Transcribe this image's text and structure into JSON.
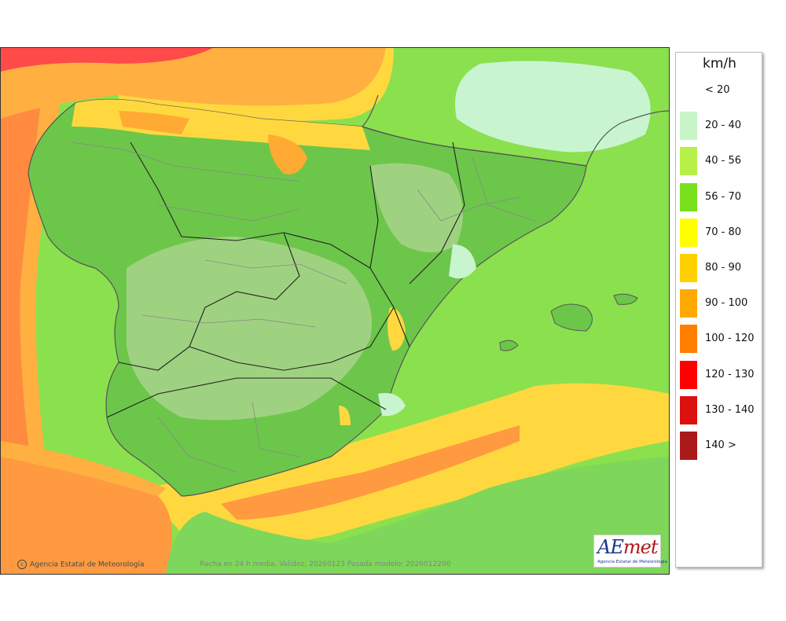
{
  "legend": {
    "unit": "km/h",
    "items": [
      {
        "label": "< 20",
        "color": "#ffffff"
      },
      {
        "label": "20 - 40",
        "color": "#c8f5c8"
      },
      {
        "label": "40 - 56",
        "color": "#b8f04a"
      },
      {
        "label": "56 - 70",
        "color": "#78e01c"
      },
      {
        "label": "70 - 80",
        "color": "#ffff00"
      },
      {
        "label": "80 - 90",
        "color": "#ffd000"
      },
      {
        "label": "90 - 100",
        "color": "#ffaa00"
      },
      {
        "label": "100 - 120",
        "color": "#ff8000"
      },
      {
        "label": "120 - 130",
        "color": "#ff0000"
      },
      {
        "label": "130 - 140",
        "color": "#dd1010"
      },
      {
        "label": "140 >",
        "color": "#aa1a1a"
      }
    ]
  },
  "map": {
    "credit": "Agencia Estatal de Meteorología",
    "validity": "Racha en 24 h media. Validez: 20260123 Pasada modelo: 2026012200",
    "logo": {
      "text_a": "AE",
      "text_b": "met",
      "subtitle": "Agencia Estatal de Meteorología"
    }
  },
  "colors": {
    "sea_green": "#8be04e",
    "land_green": "#6cc64a",
    "land_pale": "#a8d48a",
    "orange": "#ff9a40",
    "yellow": "#ffd840",
    "red": "#ff4a4a",
    "pale_cyan": "#c8f5d0"
  }
}
